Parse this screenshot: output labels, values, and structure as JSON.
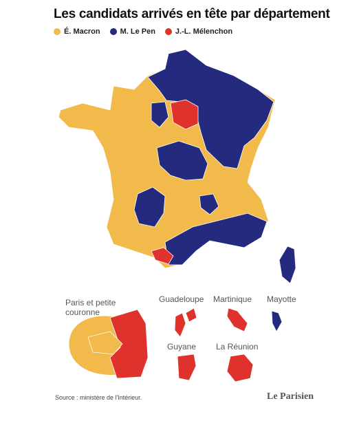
{
  "header": {
    "title": "Les candidats arrivés en tête par département"
  },
  "legend": [
    {
      "label": "É. Macron",
      "color": "#f2b94b"
    },
    {
      "label": "M. Le Pen",
      "color": "#242a7d"
    },
    {
      "label": "J.-L. Mélenchon",
      "color": "#e0322c"
    }
  ],
  "insets": [
    "Paris et petite couronne",
    "Guadeloupe",
    "Martinique",
    "Mayotte",
    "Guyane",
    "La Réunion"
  ],
  "footer": {
    "source": "Source : ministère de l'Intérieur.",
    "logo": "Le Parisien"
  }
}
